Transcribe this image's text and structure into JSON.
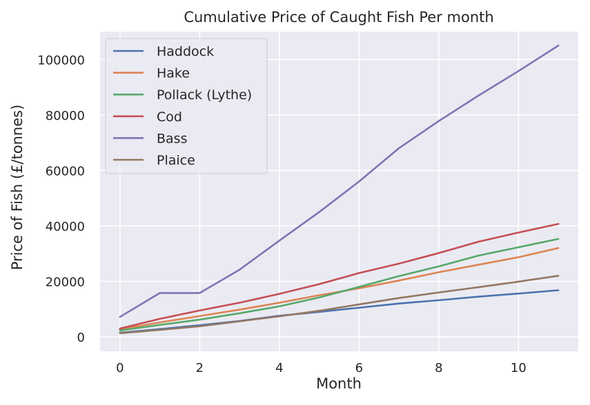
{
  "chart_data": {
    "type": "line",
    "title": "Cumulative Price of Caught Fish Per month",
    "xlabel": "Month",
    "ylabel": "Price of Fish (£/tonnes)",
    "x": [
      0,
      1,
      2,
      3,
      4,
      5,
      6,
      7,
      8,
      9,
      10,
      11
    ],
    "xlim": [
      -0.5,
      11.5
    ],
    "ylim": [
      -5200,
      110000
    ],
    "xticks": [
      0,
      2,
      4,
      6,
      8,
      10
    ],
    "yticks": [
      0,
      20000,
      40000,
      60000,
      80000,
      100000
    ],
    "grid": true,
    "legend_position": "top-left",
    "series": [
      {
        "name": "Haddock",
        "color": "#4c72b0",
        "values": [
          1500,
          2800,
          4200,
          5700,
          7600,
          9000,
          10500,
          12000,
          13200,
          14500,
          15600,
          16800
        ]
      },
      {
        "name": "Hake",
        "color": "#dd8452",
        "values": [
          2700,
          5200,
          7500,
          9800,
          12300,
          15000,
          17500,
          20300,
          23300,
          26000,
          28700,
          32000
        ]
      },
      {
        "name": "Pollack (Lythe)",
        "color": "#55a868",
        "values": [
          2300,
          4300,
          6200,
          8500,
          11000,
          14200,
          18000,
          21900,
          25400,
          29300,
          32300,
          35300
        ]
      },
      {
        "name": "Cod",
        "color": "#c44e52",
        "values": [
          3000,
          6500,
          9500,
          12300,
          15500,
          19000,
          23000,
          26400,
          30200,
          34300,
          37600,
          40700
        ]
      },
      {
        "name": "Bass",
        "color": "#8172b3",
        "values": [
          7200,
          15800,
          15800,
          24200,
          34700,
          45000,
          56000,
          68000,
          77800,
          87000,
          95800,
          105000
        ]
      },
      {
        "name": "Plaice",
        "color": "#937860",
        "values": [
          1300,
          2500,
          3800,
          5600,
          7400,
          9400,
          11700,
          14000,
          16000,
          17900,
          19900,
          22000
        ]
      }
    ]
  }
}
